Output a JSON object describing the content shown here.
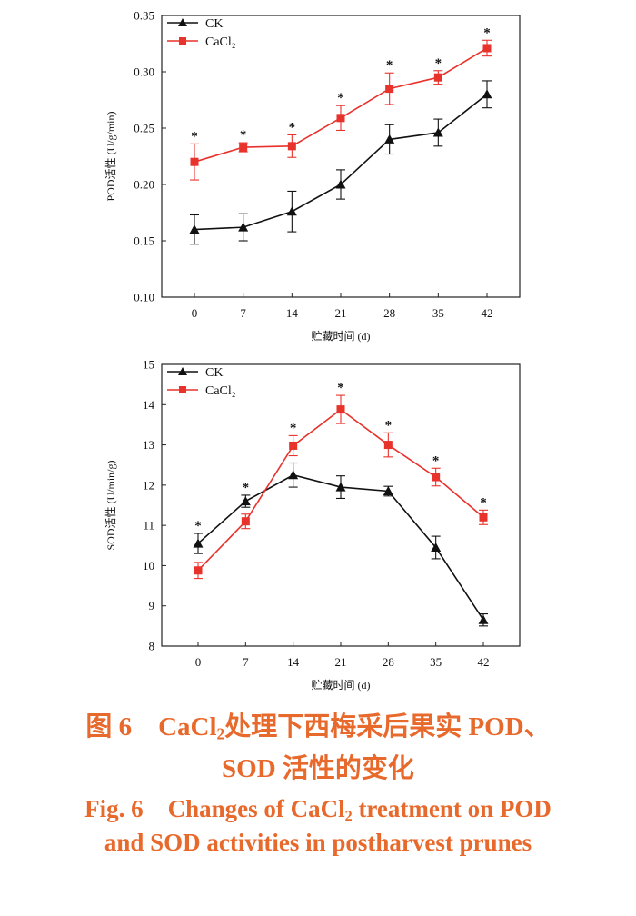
{
  "chart_data": [
    {
      "type": "line",
      "ylabel": "POD活性 (U/g/min)",
      "xlabel": "贮藏时间 (d)",
      "x": [
        0,
        7,
        14,
        21,
        28,
        35,
        42
      ],
      "xticks": [
        "0",
        "7",
        "14",
        "21",
        "28",
        "35",
        "42"
      ],
      "ylim": [
        0.1,
        0.35
      ],
      "yticks": [
        "0.10",
        "0.15",
        "0.20",
        "0.25",
        "0.30",
        "0.35"
      ],
      "legend_position": "top-left",
      "series": [
        {
          "name": "CK",
          "marker": "triangle",
          "color": "#111111",
          "values": [
            0.16,
            0.162,
            0.176,
            0.2,
            0.24,
            0.246,
            0.28
          ],
          "errors": [
            0.013,
            0.012,
            0.018,
            0.013,
            0.013,
            0.012,
            0.012
          ]
        },
        {
          "name": "CaCl₂",
          "marker": "square",
          "color": "#e8322c",
          "values": [
            0.22,
            0.233,
            0.234,
            0.259,
            0.285,
            0.295,
            0.321
          ],
          "errors": [
            0.016,
            0.004,
            0.01,
            0.011,
            0.014,
            0.006,
            0.007
          ]
        }
      ],
      "significance_labels": [
        "*",
        "*",
        "*",
        "*",
        "*",
        "*",
        "*"
      ]
    },
    {
      "type": "line",
      "ylabel": "SOD活性 (U/min/g)",
      "xlabel": "贮藏时间 (d)",
      "x": [
        0,
        7,
        14,
        21,
        28,
        35,
        42
      ],
      "xticks": [
        "0",
        "7",
        "14",
        "21",
        "28",
        "35",
        "42"
      ],
      "ylim": [
        8,
        15
      ],
      "yticks": [
        "8",
        "9",
        "10",
        "11",
        "12",
        "13",
        "14",
        "15"
      ],
      "legend_position": "top-left",
      "series": [
        {
          "name": "CK",
          "marker": "triangle",
          "color": "#111111",
          "values": [
            10.55,
            11.6,
            12.25,
            11.95,
            11.85,
            10.45,
            8.65
          ],
          "errors": [
            0.25,
            0.15,
            0.3,
            0.28,
            0.12,
            0.28,
            0.15
          ]
        },
        {
          "name": "CaCl₂",
          "marker": "square",
          "color": "#e8322c",
          "values": [
            9.88,
            11.1,
            12.98,
            13.88,
            13.0,
            12.2,
            11.2
          ],
          "errors": [
            0.2,
            0.18,
            0.25,
            0.35,
            0.3,
            0.22,
            0.18
          ]
        }
      ],
      "significance_labels": [
        "*",
        "*",
        "*",
        "*",
        "*",
        "*",
        "*"
      ]
    }
  ],
  "caption": {
    "cn_line1_prefix": "图 6　CaCl",
    "cn_line1_sub": "2",
    "cn_line1_suffix": "处理下西梅采后果实 POD、",
    "cn_line2": "SOD 活性的变化",
    "en_line1_prefix": "Fig. 6　Changes of CaCl",
    "en_line1_sub": "2",
    "en_line1_suffix": " treatment on POD",
    "en_line2": "and SOD activities in postharvest prunes",
    "color": "#e8692c"
  }
}
